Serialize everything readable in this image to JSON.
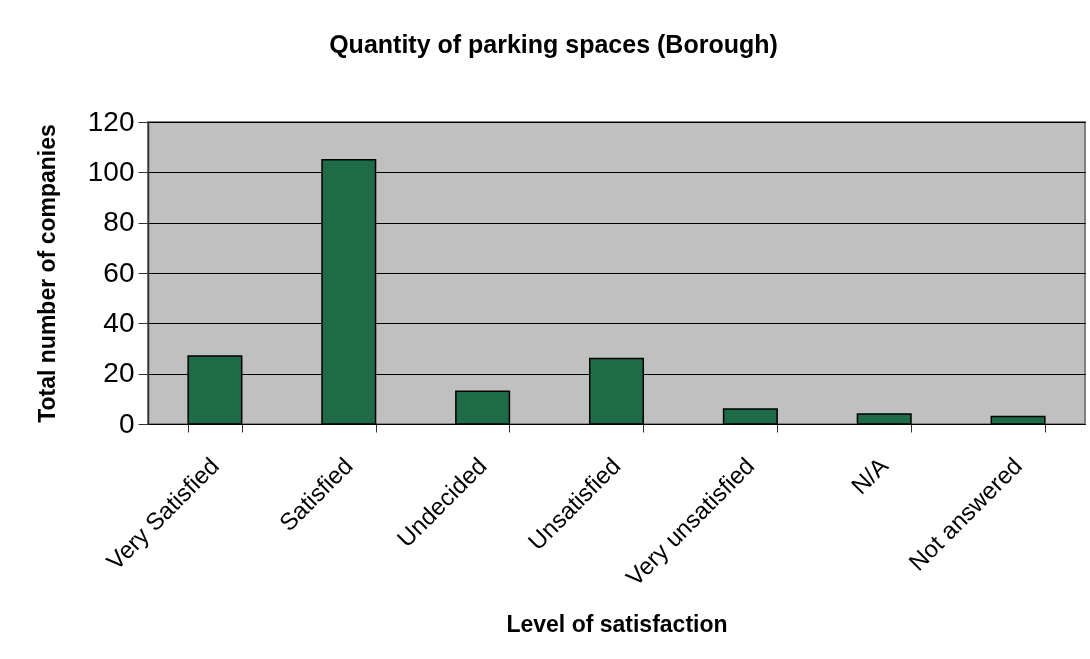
{
  "chart_data": {
    "type": "bar",
    "title": "Quantity of parking spaces (Borough)",
    "xlabel": "Level of satisfaction",
    "ylabel": "Total number of companies",
    "categories": [
      "Very Satisfied",
      "Satisfied",
      "Undecided",
      "Unsatisfied",
      "Very unsatisfied",
      "N/A",
      "Not answered"
    ],
    "values": [
      27,
      105,
      13,
      26,
      6,
      4,
      3
    ],
    "color": "#1f6b48",
    "ylim": [
      0,
      120
    ],
    "yticks": [
      0,
      20,
      40,
      60,
      80,
      100,
      120
    ],
    "grid": "y"
  }
}
